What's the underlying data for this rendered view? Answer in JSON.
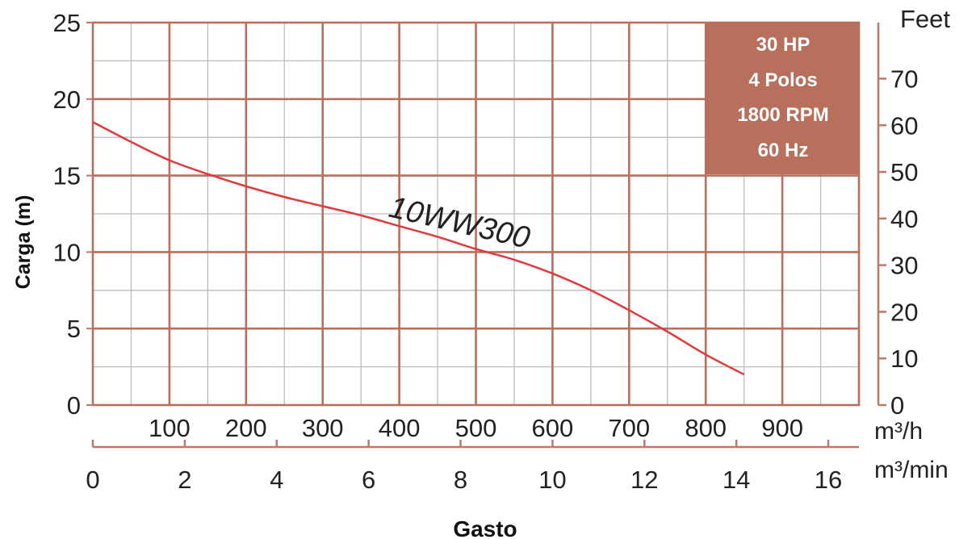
{
  "chart_data": {
    "type": "line",
    "ylabel": "Carga (m)",
    "xlabel": "Gasto",
    "ylim": [
      0,
      25
    ],
    "y_ticks": [
      "0",
      "5",
      "10",
      "15",
      "20",
      "25"
    ],
    "xlim_m3h": [
      0,
      1000
    ],
    "x_ticks_m3h": [
      "100",
      "200",
      "300",
      "400",
      "500",
      "600",
      "700",
      "800",
      "900"
    ],
    "x_unit_m3h": "m³/h",
    "x_ticks_m3min": [
      "0",
      "2",
      "4",
      "6",
      "8",
      "10",
      "12",
      "14",
      "16"
    ],
    "x_unit_m3min": "m³/min",
    "y2_unit": "Feet",
    "y2_ticks": [
      "0",
      "10",
      "20",
      "30",
      "40",
      "50",
      "60",
      "70"
    ],
    "grid": true,
    "series": [
      {
        "name": "10WW300",
        "color": "#e03a3e",
        "x": [
          0,
          50,
          100,
          150,
          200,
          250,
          300,
          350,
          400,
          450,
          500,
          550,
          600,
          650,
          700,
          750,
          800,
          850
        ],
        "y": [
          18.5,
          17.2,
          16.0,
          15.1,
          14.3,
          13.6,
          13.0,
          12.4,
          11.7,
          11.0,
          10.2,
          9.5,
          8.6,
          7.5,
          6.2,
          4.8,
          3.3,
          2.0
        ]
      }
    ],
    "info_box": {
      "lines": [
        "30 HP",
        "4 Polos",
        "1800 RPM",
        "60 Hz"
      ],
      "fill": "#b86f5c",
      "text_color": "#ffffff"
    },
    "colors": {
      "grid_major": "#b86f5c",
      "grid_minor": "#bdbdbd",
      "axis": "#c0776a"
    }
  }
}
